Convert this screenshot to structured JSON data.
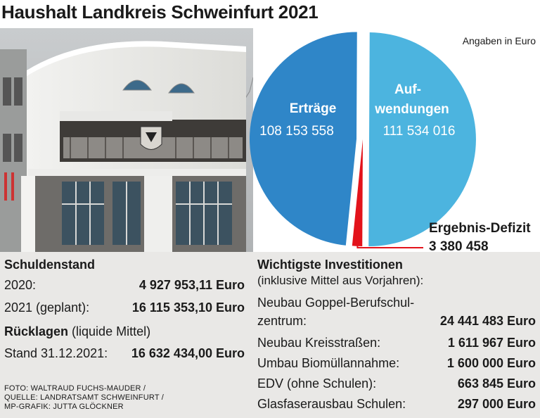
{
  "title": "Haushalt Landkreis Schweinfurt 2021",
  "unit_note": "Angaben in Euro",
  "chart_data": {
    "type": "pie",
    "slices": [
      {
        "label": "Erträge",
        "value": 108153558,
        "value_label": "108 153 558",
        "color": "#2f86c8"
      },
      {
        "label": "Aufwendungen",
        "label_lines": [
          "Auf-",
          "wendungen"
        ],
        "value": 111534016,
        "value_label": "111 534 016",
        "color": "#4cb4df"
      },
      {
        "label": "Ergebnis-Defizit",
        "value": 3380458,
        "value_label": "3 380 458",
        "color": "#e3131b"
      }
    ]
  },
  "schuldenstand": {
    "heading": "Schuldenstand",
    "rows": [
      {
        "label": "2020:",
        "value": "4 927 953,11 Euro"
      },
      {
        "label": "2021 (geplant):",
        "value": "16 115 353,10 Euro"
      }
    ]
  },
  "ruecklagen": {
    "heading": "Rücklagen",
    "heading_note": "(liquide Mittel)",
    "rows": [
      {
        "label": "Stand 31.12.2021:",
        "value": "16 632 434,00 Euro"
      }
    ]
  },
  "investitionen": {
    "heading": "Wichtigste Investitionen",
    "subheading": "(inklusive Mittel aus Vorjahren):",
    "item1_line1": "Neubau Goppel-Berufschul-",
    "item1_line2": "zentrum:",
    "item1_value": "24 441 483 Euro",
    "rows": [
      {
        "label": "Neubau Kreisstraßen:",
        "value": "1 611 967 Euro"
      },
      {
        "label": "Umbau Biomüllannahme:",
        "value": "1 600 000 Euro"
      },
      {
        "label": "EDV (ohne Schulen):",
        "value": "663 845 Euro"
      },
      {
        "label": "Glasfaserausbau Schulen:",
        "value": "297 000 Euro"
      }
    ]
  },
  "credits": [
    "FOTO: WALTRAUD FUCHS-MAUDER /",
    "QUELLE: LANDRATSAMT SCHWEINFURT /",
    "MP-GRAFIK: JUTTA GLÖCKNER"
  ]
}
